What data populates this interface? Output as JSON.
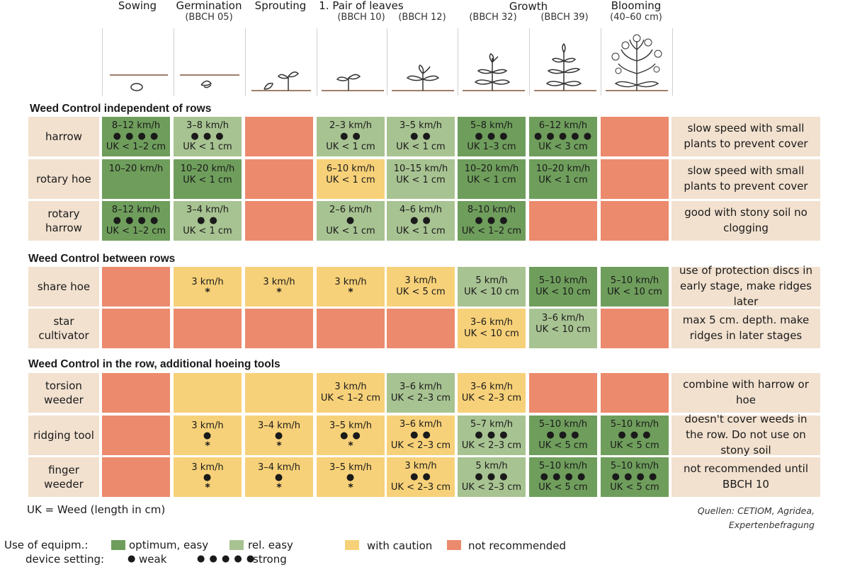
{
  "stages": [
    {
      "title": "Sowing",
      "sub": ""
    },
    {
      "title": "Germination",
      "sub": "(BBCH 05)"
    },
    {
      "title": "Sprouting",
      "sub": ""
    },
    {
      "title": "1. Pair of leaves",
      "sub": "(BBCH 10)"
    },
    {
      "title": "",
      "sub": "(BBCH 12)"
    },
    {
      "title": "",
      "sub": "(BBCH 32)"
    },
    {
      "title": "",
      "sub": "(BBCH 39)"
    },
    {
      "title": "Blooming",
      "sub": "(40–60 cm)"
    }
  ],
  "growth_group_label": "Growth",
  "sections": [
    {
      "title": "Weed Control independent of rows",
      "rows": [
        {
          "label": "harrow",
          "note": "slow speed with small plants to prevent cover",
          "cells": [
            {
              "c": "g",
              "lines": [
                "8–12 km/h",
                "● ● ● ●",
                "UK < 1–2 cm"
              ]
            },
            {
              "c": "l",
              "lines": [
                "3–8 km/h",
                "● ● ●",
                "UK < 1 cm"
              ]
            },
            {
              "c": "r",
              "lines": []
            },
            {
              "c": "l",
              "lines": [
                "2–3 km/h",
                "● ●",
                "UK < 1 cm"
              ]
            },
            {
              "c": "l",
              "lines": [
                "3–5 km/h",
                "● ●",
                "UK < 1 cm"
              ]
            },
            {
              "c": "g",
              "lines": [
                "5–8 km/h",
                "● ● ●",
                "UK 1–3 cm"
              ]
            },
            {
              "c": "g",
              "lines": [
                "6–12 km/h",
                "● ● ● ● ●",
                "UK < 3 cm"
              ]
            },
            {
              "c": "r",
              "lines": []
            }
          ]
        },
        {
          "label": "rotary hoe",
          "note": "slow speed with small plants to prevent cover",
          "cells": [
            {
              "c": "g",
              "lines": [
                "10–20 km/h"
              ],
              "top": true
            },
            {
              "c": "g",
              "lines": [
                "10–20 km/h",
                "UK < 1 cm"
              ],
              "top": true
            },
            {
              "c": "r",
              "lines": []
            },
            {
              "c": "y",
              "lines": [
                "6–10 km/h",
                "UK < 1 cm"
              ],
              "top": true
            },
            {
              "c": "l",
              "lines": [
                "10–15 km/h",
                "UK < 1 cm"
              ],
              "top": true
            },
            {
              "c": "g",
              "lines": [
                "10–20 km/h",
                "UK < 1 cm"
              ],
              "top": true
            },
            {
              "c": "g",
              "lines": [
                "10–20 km/h",
                "UK < 1 cm"
              ],
              "top": true
            },
            {
              "c": "r",
              "lines": []
            }
          ]
        },
        {
          "label": "rotary harrow",
          "note": "good with stony soil no clogging",
          "cells": [
            {
              "c": "g",
              "lines": [
                "8–12 km/h",
                "● ● ● ●",
                "UK < 1–2 cm"
              ]
            },
            {
              "c": "l",
              "lines": [
                "3–4 km/h",
                "● ●",
                "UK < 1 cm"
              ]
            },
            {
              "c": "r",
              "lines": []
            },
            {
              "c": "l",
              "lines": [
                "2–6 km/h",
                "●",
                "UK < 1 cm"
              ]
            },
            {
              "c": "l",
              "lines": [
                "4–6 km/h",
                "● ●",
                "UK < 1 cm"
              ]
            },
            {
              "c": "g",
              "lines": [
                "8–10 km/h",
                "● ● ●",
                "UK < 1–2 cm"
              ]
            },
            {
              "c": "r",
              "lines": []
            },
            {
              "c": "r",
              "lines": []
            }
          ]
        }
      ]
    },
    {
      "title": "Weed Control between rows",
      "rows": [
        {
          "label": "share hoe",
          "note": "use of protection discs in early stage, make ridges later",
          "cells": [
            {
              "c": "r",
              "lines": []
            },
            {
              "c": "y",
              "lines": [
                "3 km/h",
                "*"
              ]
            },
            {
              "c": "y",
              "lines": [
                "3 km/h",
                "*"
              ]
            },
            {
              "c": "y",
              "lines": [
                "3 km/h",
                "*"
              ]
            },
            {
              "c": "y",
              "lines": [
                "3 km/h",
                "UK < 5 cm"
              ]
            },
            {
              "c": "l",
              "lines": [
                "5 km/h",
                "UK < 10 cm"
              ]
            },
            {
              "c": "g",
              "lines": [
                "5–10 km/h",
                "UK < 10 cm"
              ]
            },
            {
              "c": "g",
              "lines": [
                "5–10 km/h",
                "UK < 10 cm"
              ]
            }
          ]
        },
        {
          "label": "star cultivator",
          "note": "max 5 cm. depth. make ridges in later stages",
          "cells": [
            {
              "c": "r",
              "lines": []
            },
            {
              "c": "r",
              "lines": []
            },
            {
              "c": "r",
              "lines": []
            },
            {
              "c": "r",
              "lines": []
            },
            {
              "c": "r",
              "lines": []
            },
            {
              "c": "y",
              "lines": [
                "3–6 km/h",
                "UK < 10 cm"
              ]
            },
            {
              "c": "l",
              "lines": [
                "3–6 km/h",
                "UK < 10 cm"
              ],
              "top": true
            },
            {
              "c": "r",
              "lines": []
            }
          ]
        }
      ]
    },
    {
      "title": "Weed Control in the row, additional hoeing tools",
      "rows": [
        {
          "label": "torsion weeder",
          "note": "combine with harrow or hoe",
          "cells": [
            {
              "c": "r",
              "lines": []
            },
            {
              "c": "y",
              "lines": []
            },
            {
              "c": "y",
              "lines": []
            },
            {
              "c": "y",
              "lines": [
                "3 km/h",
                "UK < 1–2 cm"
              ]
            },
            {
              "c": "l",
              "lines": [
                "3–6 km/h",
                "UK < 2–3 cm"
              ]
            },
            {
              "c": "y",
              "lines": [
                "3–6 km/h",
                "UK < 2–3 cm"
              ]
            },
            {
              "c": "r",
              "lines": []
            },
            {
              "c": "r",
              "lines": []
            }
          ]
        },
        {
          "label": "ridging tool",
          "note": "doesn't cover weeds in the row. Do not use on stony soil",
          "cells": [
            {
              "c": "r",
              "lines": []
            },
            {
              "c": "y",
              "lines": [
                "3 km/h",
                "●",
                "*"
              ]
            },
            {
              "c": "y",
              "lines": [
                "3–4 km/h",
                "●",
                "*"
              ]
            },
            {
              "c": "y",
              "lines": [
                "3–5 km/h",
                "● ●",
                "*"
              ]
            },
            {
              "c": "y",
              "lines": [
                "3–6 km/h",
                "● ●",
                "UK < 2–3 cm"
              ]
            },
            {
              "c": "l",
              "lines": [
                "5–7 km/h",
                "● ● ●",
                "UK < 2–3 cm"
              ]
            },
            {
              "c": "g",
              "lines": [
                "5–10 km/h",
                "● ● ●",
                "UK < 5 cm"
              ]
            },
            {
              "c": "g",
              "lines": [
                "5–10 km/h",
                "● ● ●",
                "UK < 5 cm"
              ]
            }
          ]
        },
        {
          "label": "finger weeder",
          "note": "not recommended until BBCH 10",
          "cells": [
            {
              "c": "r",
              "lines": []
            },
            {
              "c": "y",
              "lines": [
                "3 km/h",
                "●",
                "*"
              ]
            },
            {
              "c": "y",
              "lines": [
                "3–4 km/h",
                "●",
                "*"
              ]
            },
            {
              "c": "y",
              "lines": [
                "3–5 km/h",
                "●",
                "*"
              ]
            },
            {
              "c": "y",
              "lines": [
                "3 km/h",
                "● ●",
                "UK < 2–3 cm"
              ]
            },
            {
              "c": "l",
              "lines": [
                "5 km/h",
                "● ● ●",
                "UK < 2–3 cm"
              ]
            },
            {
              "c": "g",
              "lines": [
                "5–10 km/h",
                "● ● ● ●",
                "UK < 5 cm"
              ]
            },
            {
              "c": "g",
              "lines": [
                "5–10 km/h",
                "● ● ● ●",
                "UK < 5 cm"
              ]
            }
          ]
        }
      ]
    }
  ],
  "footnote": "UK = Weed (length in cm)",
  "source_line1": "Quellen: CETIOM, Agridea,",
  "source_line2": "Expertenbefragung",
  "legend": {
    "use_label": "Use of equipm.:",
    "optimum": "optimum, easy",
    "rel_easy": "rel. easy",
    "caution": "with caution",
    "not_rec": "not recommended",
    "setting_label": "device setting:",
    "weak_dot": "●",
    "weak": "weak",
    "strong_dots": "● ● ● ● ●",
    "strong": "strong"
  },
  "colors": {
    "optimum": "#6f9e5c",
    "rel_easy": "#a8c392",
    "caution": "#f7d179",
    "not_rec": "#ec8a6d",
    "label_bg": "#f2e1cf"
  }
}
